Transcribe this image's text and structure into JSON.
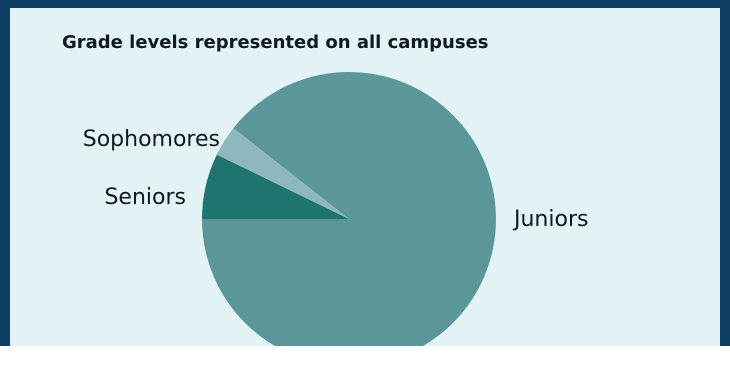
{
  "chart_data": {
    "type": "pie",
    "title": "Grade levels represented on all campuses",
    "slices": [
      {
        "label": "Juniors",
        "value": 89.4,
        "color": "#5b9699"
      },
      {
        "label": "Seniors",
        "value": 3.4,
        "color": "#8fb8be"
      },
      {
        "label": "Sophomores",
        "value": 7.2,
        "color": "#1f7470"
      }
    ],
    "legend": "none"
  }
}
